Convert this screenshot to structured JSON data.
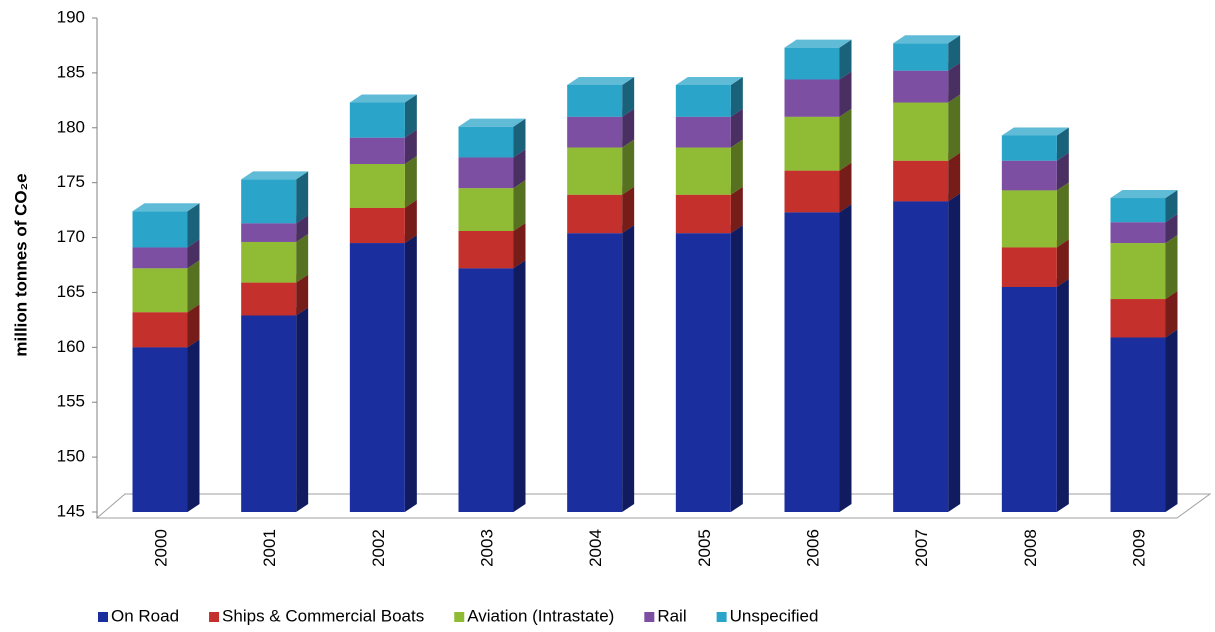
{
  "chart_data": {
    "type": "stacked-bar-3d",
    "y_label": "million tonnes of CO₂e",
    "categories": [
      "2000",
      "2001",
      "2002",
      "2003",
      "2004",
      "2005",
      "2006",
      "2007",
      "2008",
      "2009"
    ],
    "series": [
      {
        "name": "On Road",
        "color": "#1b2e9e",
        "values": [
          160.0,
          162.9,
          169.5,
          167.2,
          170.4,
          170.4,
          172.3,
          173.3,
          165.5,
          160.9
        ]
      },
      {
        "name": "Ships & Commercial Boats",
        "color": "#c4302b",
        "values": [
          3.2,
          3.0,
          3.2,
          3.4,
          3.5,
          3.5,
          3.8,
          3.7,
          3.6,
          3.5
        ]
      },
      {
        "name": "Aviation (Intrastate)",
        "color": "#8fbc34",
        "values": [
          4.0,
          3.7,
          4.0,
          3.9,
          4.3,
          4.3,
          4.9,
          5.3,
          5.2,
          5.1
        ]
      },
      {
        "name": "Rail",
        "color": "#7c4fa3",
        "values": [
          1.9,
          1.7,
          2.4,
          2.8,
          2.8,
          2.8,
          3.4,
          2.9,
          2.7,
          1.9
        ]
      },
      {
        "name": "Unspecified",
        "color": "#2ba4c9",
        "values": [
          3.3,
          4.0,
          3.2,
          2.8,
          2.9,
          2.9,
          2.9,
          2.5,
          2.3,
          2.2
        ]
      }
    ],
    "ylim": [
      145,
      190
    ],
    "yticks": [
      145,
      150,
      155,
      160,
      165,
      170,
      175,
      180,
      185,
      190
    ],
    "legend": "bottom"
  }
}
